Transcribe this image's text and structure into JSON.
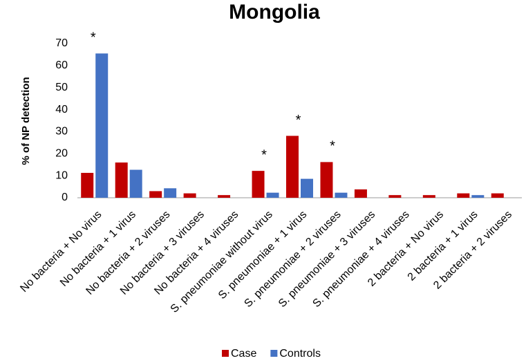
{
  "chart_data": {
    "type": "bar",
    "title": "Mongolia",
    "y_label": "% of NP detection",
    "categories": [
      "No bacteria + No virus",
      "No bacteria + 1 virus",
      "No bacteria + 2 viruses",
      "No bacteria + 3 viruses",
      "No bacteria + 4 viruses",
      "S. pneumoniae without virus",
      "S. pneumoniae + 1 virus",
      "S. pneumoniae + 2 viruses",
      "S. pneumoniae + 3 viruses",
      "S. pneumoniae + 4 viruses",
      "2 bacteria + No virus",
      "2 bacteria + 1 virus",
      "2 bacteria + 2 viruses"
    ],
    "series": [
      {
        "name": "Case",
        "color": "#c00000",
        "values": [
          11.3,
          16,
          3,
          2,
          1.2,
          12.2,
          28.1,
          16.2,
          3.8,
          1.2,
          1.2,
          2,
          2
        ]
      },
      {
        "name": "Controls",
        "color": "#4472c4",
        "values": [
          65.5,
          12.7,
          4.3,
          0,
          0,
          2.3,
          8.6,
          2.3,
          0,
          0,
          0,
          1.2,
          0
        ]
      }
    ],
    "ylim": [
      0,
      70
    ],
    "yticks": [
      0,
      10,
      20,
      30,
      40,
      50,
      60,
      70
    ],
    "grid": false,
    "legend": "bottom",
    "annotations": [
      {
        "text": "*",
        "category": "No bacteria + No virus"
      },
      {
        "text": "*",
        "category": "S. pneumoniae without virus"
      },
      {
        "text": "*",
        "category": "S. pneumoniae + 1 virus"
      },
      {
        "text": "*",
        "category": "S. pneumoniae + 2 viruses"
      }
    ]
  }
}
